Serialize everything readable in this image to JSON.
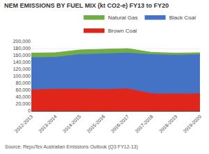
{
  "chart_data": {
    "type": "area",
    "title": "NEM EMISSIONS BY FUEL MIX (kt CO2-e) FY13 to FY20",
    "annotations": [
      "Source: RepuTex Australian Emissions Outlook (Q3 FY12-13)"
    ],
    "categories": [
      "2012-2013",
      "2013-2014",
      "2014-2015",
      "2015-2016",
      "2016-2017",
      "2017-2018",
      "2018-2019",
      "2019-2020"
    ],
    "series": [
      {
        "name": "Brown Coal",
        "color": "#e0251a",
        "values": [
          61000,
          63000,
          63000,
          62000,
          64000,
          50000,
          49000,
          50000
        ]
      },
      {
        "name": "Black Coal",
        "color": "#4472c4",
        "values": [
          93000,
          92000,
          100000,
          103000,
          103000,
          113000,
          112000,
          113000
        ]
      },
      {
        "name": "Natural Gas",
        "color": "#70ad47",
        "values": [
          13000,
          13000,
          13000,
          13000,
          13000,
          6000,
          6000,
          5000
        ]
      }
    ],
    "stacked": true,
    "ylim": [
      0,
      200000
    ],
    "yticks": [
      0,
      {
        "value": 20000,
        "label": "20,000"
      },
      {
        "value": 40000,
        "label": "40,000"
      },
      {
        "value": 60000,
        "label": "60,000"
      },
      {
        "value": 80000,
        "label": "80,000"
      },
      {
        "value": 100000,
        "label": "100,000"
      },
      {
        "value": 120000,
        "label": "120,000"
      },
      {
        "value": 140000,
        "label": "140,000"
      },
      {
        "value": 160000,
        "label": "160,000"
      },
      {
        "value": 180000,
        "label": "180,000"
      },
      {
        "value": 200000,
        "label": "200,000"
      }
    ],
    "grid": true,
    "legend": "upper right"
  }
}
